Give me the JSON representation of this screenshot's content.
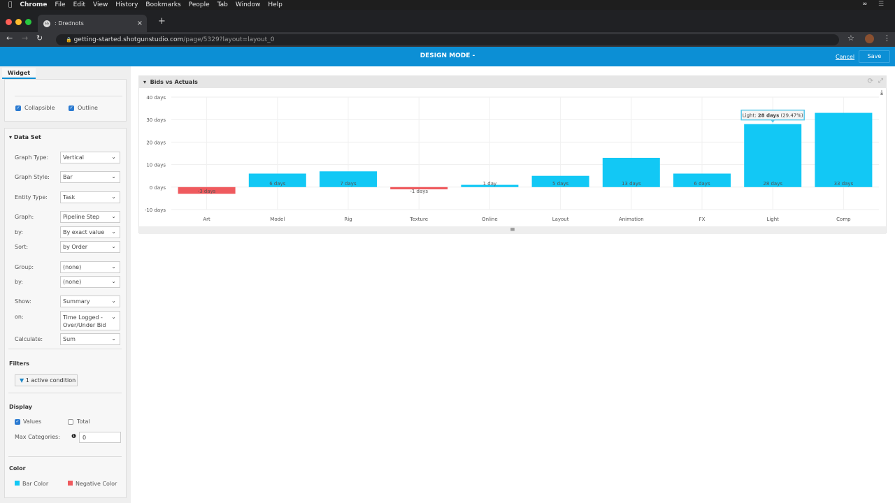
{
  "menubar": {
    "app": "Chrome",
    "items": [
      "File",
      "Edit",
      "View",
      "History",
      "Bookmarks",
      "People",
      "Tab",
      "Window",
      "Help"
    ]
  },
  "browser": {
    "tab_title": ": Drednots",
    "favicon": "SG",
    "url_host": "getting-started.shotgunstudio.com",
    "url_path": "/page/5329?layout=layout_0"
  },
  "header": {
    "title": "DESIGN MODE -",
    "cancel": "Cancel",
    "save": "Save",
    "color": "#0c8fd5"
  },
  "sidebar": {
    "tab": "Widget",
    "collapsible": "Collapsible",
    "outline": "Outline",
    "dataset_title": "Data Set",
    "fields": [
      {
        "label": "Graph Type:",
        "value": "Vertical"
      },
      {
        "label": "Graph Style:",
        "value": "Bar"
      },
      {
        "label": "Entity Type:",
        "value": "Task"
      },
      {
        "label": "Graph:",
        "value": "Pipeline Step"
      },
      {
        "label": "by:",
        "value": "By exact value"
      },
      {
        "label": "Sort:",
        "value": "by Order"
      },
      {
        "label": "Group:",
        "value": "(none)"
      },
      {
        "label": "by:",
        "value": "(none)"
      },
      {
        "label": "Show:",
        "value": "Summary"
      },
      {
        "label": "on:",
        "value": "Time Logged - Over/Under Bid"
      },
      {
        "label": "Calculate:",
        "value": "Sum"
      }
    ],
    "filters_title": "Filters",
    "filter_button": "1 active condition",
    "display_title": "Display",
    "values_label": "Values",
    "values_checked": true,
    "total_label": "Total",
    "total_checked": false,
    "max_categories_label": "Max Categories:",
    "max_categories": "0",
    "color_title": "Color",
    "bar_color_label": "Bar Color",
    "negative_color_label": "Negative Color"
  },
  "widget": {
    "title": "Bids vs Actuals",
    "tooltip": {
      "category": "Light:",
      "value": "28 days",
      "pct": "(29.47%)"
    }
  },
  "chart_data": {
    "type": "bar",
    "categories": [
      "Art",
      "Model",
      "Rig",
      "Texture",
      "Online",
      "Layout",
      "Animation",
      "FX",
      "Light",
      "Comp"
    ],
    "values": [
      -3,
      6,
      7,
      -1,
      1,
      5,
      13,
      6,
      28,
      33
    ],
    "data_labels": [
      "-3 days",
      "6 days",
      "7 days",
      "-1 days",
      "1 day",
      "5 days",
      "13 days",
      "6 days",
      "28 days",
      "33 days"
    ],
    "yticks": [
      "40 days",
      "30 days",
      "20 days",
      "10 days",
      "0 days",
      "-10 days"
    ],
    "ylim": [
      -10,
      40
    ],
    "grid": true,
    "colors": {
      "positive": "#12c8f5",
      "negative": "#ef5a5e"
    }
  }
}
